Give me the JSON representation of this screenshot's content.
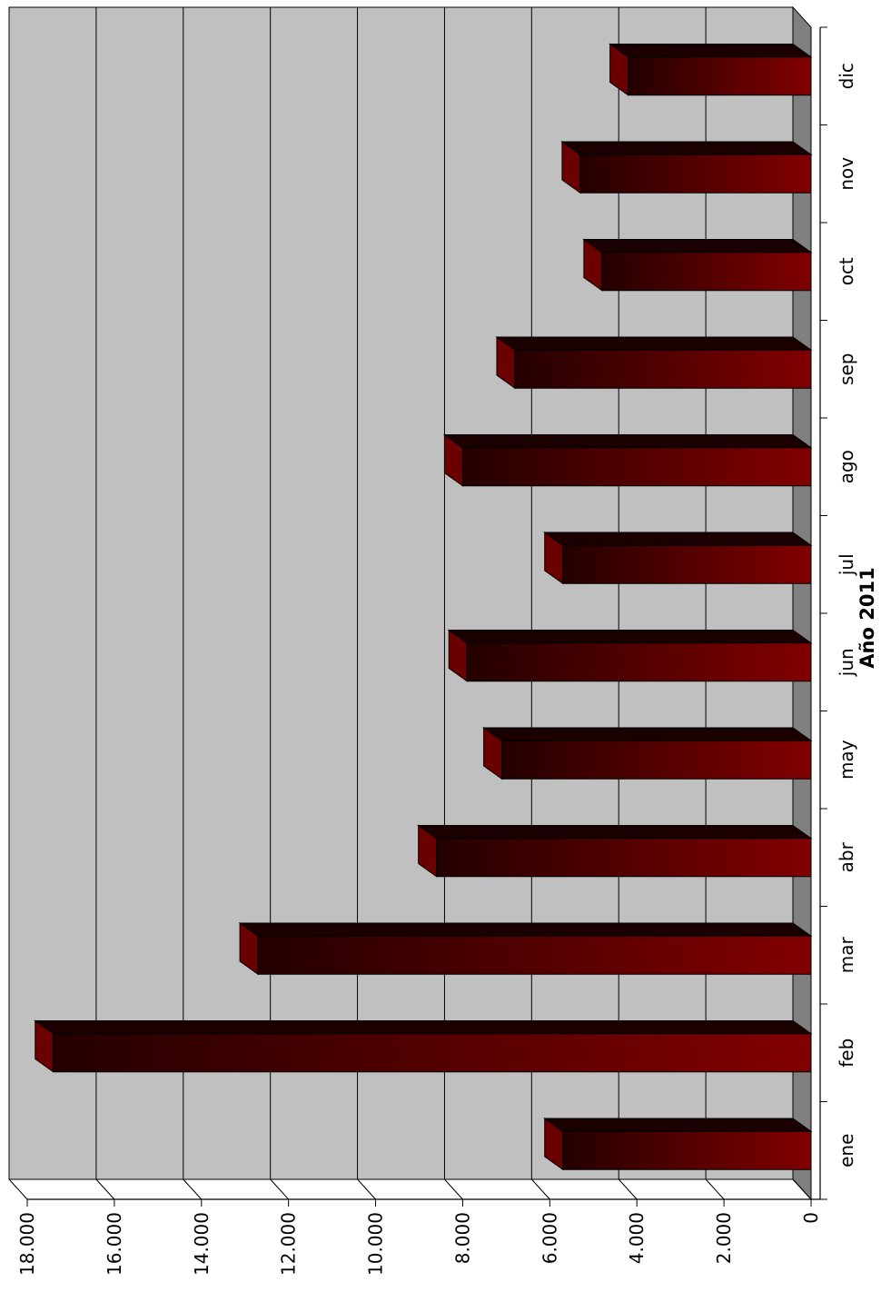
{
  "chart_data": {
    "type": "bar",
    "orientation": "rotated-90",
    "style": "3d",
    "xlabel": "Año 2011",
    "ylabel": "",
    "title": "",
    "categories": [
      "ene",
      "feb",
      "mar",
      "abr",
      "may",
      "jun",
      "jul",
      "ago",
      "sep",
      "oct",
      "nov",
      "dic"
    ],
    "values": [
      5700,
      17400,
      12700,
      8600,
      7100,
      7900,
      5700,
      8000,
      6800,
      4800,
      5300,
      4200
    ],
    "ylim": [
      0,
      18000
    ],
    "yticks": [
      0,
      2000,
      4000,
      6000,
      8000,
      10000,
      12000,
      14000,
      16000,
      18000
    ],
    "ytick_labels": [
      "0",
      "2.000",
      "4.000",
      "6.000",
      "8.000",
      "10.000",
      "12.000",
      "14.000",
      "16.000",
      "18.000"
    ],
    "grid": true,
    "legend": "none",
    "colors": {
      "bar_light": "#820000",
      "bar_dark": "#240000",
      "wall": "#c0c0c0",
      "floor": "#808080",
      "gridline": "#000000"
    }
  }
}
